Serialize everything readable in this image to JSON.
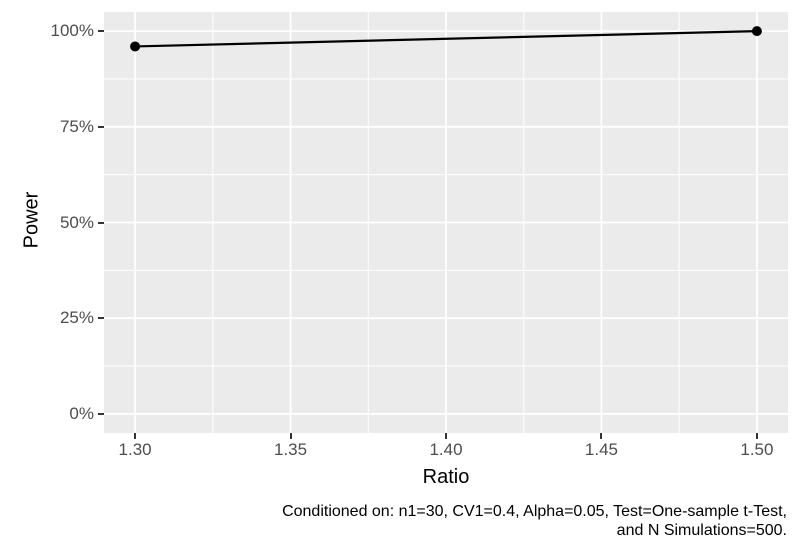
{
  "chart_data": {
    "type": "line",
    "title": "",
    "xlabel": "Ratio",
    "ylabel": "Power",
    "x": [
      1.3,
      1.5
    ],
    "series": [
      {
        "name": "Power",
        "values_percent": [
          96,
          100
        ]
      }
    ],
    "points": [
      {
        "x": 1.3,
        "y_percent": 96
      },
      {
        "x": 1.5,
        "y_percent": 100
      }
    ],
    "x_ticks": {
      "values": [
        1.3,
        1.35,
        1.4,
        1.45,
        1.5
      ],
      "labels": [
        "1.30",
        "1.35",
        "1.40",
        "1.45",
        "1.50"
      ]
    },
    "y_ticks": {
      "values": [
        0,
        25,
        50,
        75,
        100
      ],
      "labels": [
        "0%",
        "25%",
        "50%",
        "75%",
        "100%"
      ]
    },
    "x_minor": [
      1.325,
      1.375,
      1.425,
      1.475
    ],
    "y_minor": [
      12.5,
      37.5,
      62.5,
      87.5
    ],
    "xlim": [
      1.29,
      1.51
    ],
    "ylim": [
      -5,
      105
    ],
    "grid": true,
    "legend": false,
    "caption_lines": [
      "Conditioned on: n1=30, CV1=0.4, Alpha=0.05, Test=One-sample t-Test,",
      "and N Simulations=500."
    ],
    "style": {
      "panel_bg": "#EBEBEB",
      "grid_color": "#FFFFFF",
      "line_color": "#000000",
      "point_color": "#000000",
      "tick_label_color": "#4D4D4D",
      "tick_mark_color": "#333333",
      "text_color": "#000000"
    }
  }
}
